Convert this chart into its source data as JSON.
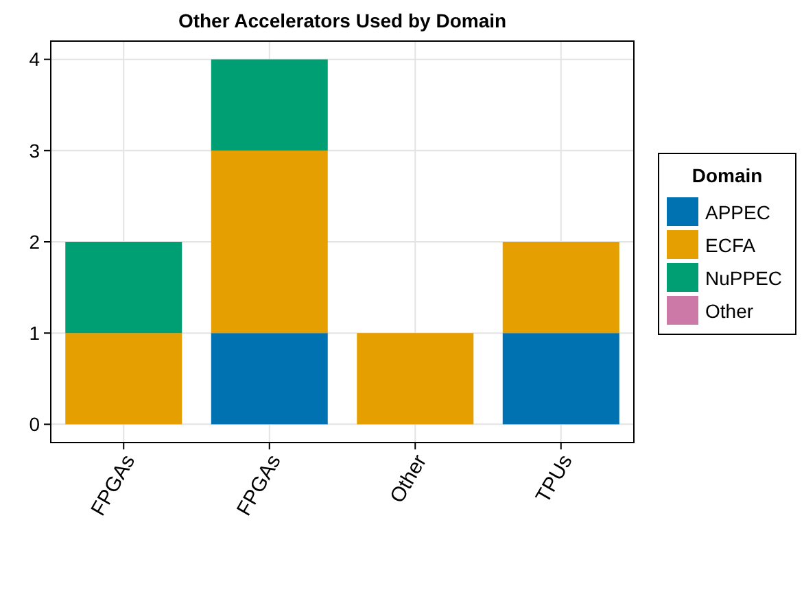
{
  "chart_data": {
    "type": "bar",
    "title": "Other Accelerators Used by Domain",
    "categories": [
      "FPGAs",
      "FPGAs",
      "Other",
      "TPUs"
    ],
    "series": [
      {
        "name": "APPEC",
        "color": "#0072b2",
        "values": [
          0,
          1,
          0,
          1
        ]
      },
      {
        "name": "ECFA",
        "color": "#e69f00",
        "values": [
          1,
          2,
          1,
          1
        ]
      },
      {
        "name": "NuPPEC",
        "color": "#009e73",
        "values": [
          1,
          1,
          0,
          0
        ]
      },
      {
        "name": "Other",
        "color": "#cc79a7",
        "values": [
          0,
          0,
          0,
          0
        ]
      }
    ],
    "stacked": true,
    "ylim": [
      -0.2,
      4.2
    ],
    "yticks": [
      0,
      1,
      2,
      3,
      4
    ],
    "grid": true,
    "legend": "right",
    "legend_title": "Domain"
  }
}
